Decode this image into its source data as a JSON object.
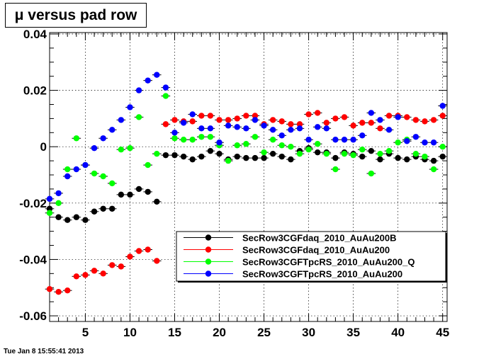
{
  "chart_data": {
    "type": "scatter",
    "title": "μ versus pad row",
    "xlim": [
      1,
      45.5
    ],
    "ylim": [
      -0.062,
      0.0405
    ],
    "x_ticks": [
      5,
      10,
      15,
      20,
      25,
      30,
      35,
      40,
      45
    ],
    "y_ticks": [
      -0.06,
      -0.04,
      -0.02,
      0,
      0.02,
      0.04
    ],
    "x_tick_labels": [
      "5",
      "10",
      "15",
      "20",
      "25",
      "30",
      "35",
      "40",
      "45"
    ],
    "y_tick_labels": [
      "-0.06",
      "-0.04",
      "-0.02",
      "0",
      "0.02",
      "0.04"
    ],
    "grid": true,
    "legend_position": "bottom-right",
    "x": [
      1,
      2,
      3,
      4,
      5,
      6,
      7,
      8,
      9,
      10,
      11,
      12,
      13,
      14,
      15,
      16,
      17,
      18,
      19,
      20,
      21,
      22,
      23,
      24,
      25,
      26,
      27,
      28,
      29,
      30,
      31,
      32,
      33,
      34,
      35,
      36,
      37,
      38,
      39,
      40,
      41,
      42,
      43,
      44,
      45
    ],
    "series": [
      {
        "name": "SecRow3CGFdaq_2010_AuAu200B",
        "color": "#000000",
        "values": [
          -0.022,
          -0.025,
          -0.026,
          -0.025,
          -0.026,
          -0.023,
          -0.022,
          -0.022,
          -0.017,
          -0.017,
          -0.015,
          -0.016,
          -0.0195,
          -0.003,
          -0.003,
          -0.0035,
          -0.0045,
          -0.0035,
          -0.0015,
          -0.0025,
          -0.0045,
          -0.0035,
          -0.004,
          -0.004,
          -0.004,
          -0.0025,
          -0.0035,
          -0.0045,
          -0.0015,
          -0.0005,
          -0.002,
          -0.002,
          -0.004,
          -0.002,
          -0.0025,
          -0.0035,
          -0.0015,
          -0.0045,
          -0.0025,
          -0.004,
          -0.0045,
          -0.0035,
          -0.0045,
          -0.005,
          -0.0035
        ]
      },
      {
        "name": "SecRow3CGFdaq_2010_AuAu200",
        "color": "#ff0000",
        "values": [
          -0.0505,
          -0.0515,
          -0.051,
          -0.046,
          -0.0455,
          -0.044,
          -0.045,
          -0.042,
          -0.0425,
          -0.039,
          -0.037,
          -0.0365,
          -0.0405,
          0.008,
          0.0095,
          0.009,
          0.009,
          0.011,
          0.011,
          0.0095,
          0.0095,
          0.01,
          0.011,
          0.011,
          0.008,
          0.0095,
          0.009,
          0.008,
          0.008,
          0.0115,
          0.012,
          0.0085,
          0.01,
          0.0105,
          0.0075,
          0.0085,
          0.0085,
          0.0065,
          0.011,
          0.011,
          0.0105,
          0.0095,
          0.009,
          0.0095,
          0.011
        ]
      },
      {
        "name": "SecRow3CGFTpcRS_2010_AuAu200_Q",
        "color": "#00ff00",
        "values": [
          -0.0235,
          -0.02,
          -0.008,
          0.003,
          -0.0065,
          -0.0095,
          -0.0105,
          -0.013,
          -0.001,
          -0.0005,
          0.0105,
          -0.0065,
          -0.0025,
          0.018,
          0.003,
          0.0025,
          0.0025,
          0.0035,
          0.0035,
          0.0005,
          -0.005,
          0.0005,
          0.001,
          0.0035,
          -0.002,
          0.0025,
          0.0005,
          0,
          -0.0025,
          -0.001,
          0.001,
          -0.0025,
          -0.008,
          -0.0025,
          -0.003,
          -0.001,
          -0.0095,
          -0.0025,
          -0.0015,
          0.0015,
          0.0025,
          -0.0025,
          -0.0035,
          -0.008,
          0
        ]
      },
      {
        "name": "SecRow3CGFTpcRS_2010_AuAu200",
        "color": "#0000ff",
        "values": [
          -0.0185,
          -0.0165,
          -0.0105,
          -0.008,
          -0.0065,
          -0.0005,
          0.003,
          0.006,
          0.0095,
          0.014,
          0.02,
          0.0235,
          0.0255,
          0.021,
          0.005,
          0.0085,
          0.0115,
          0.0065,
          0.0065,
          0.0015,
          0.0075,
          0.007,
          0.0065,
          0.0095,
          0.0075,
          0.006,
          0.004,
          0.006,
          0.0065,
          0.0025,
          0.007,
          0.0065,
          0.0025,
          0.0025,
          0.0025,
          0.004,
          0.012,
          0.0095,
          0.006,
          0.0105,
          0.002,
          0.0035,
          0.0015,
          0.0015,
          0.0145
        ]
      }
    ]
  },
  "timestamp": "Tue Jan  8 15:55:41 2013"
}
